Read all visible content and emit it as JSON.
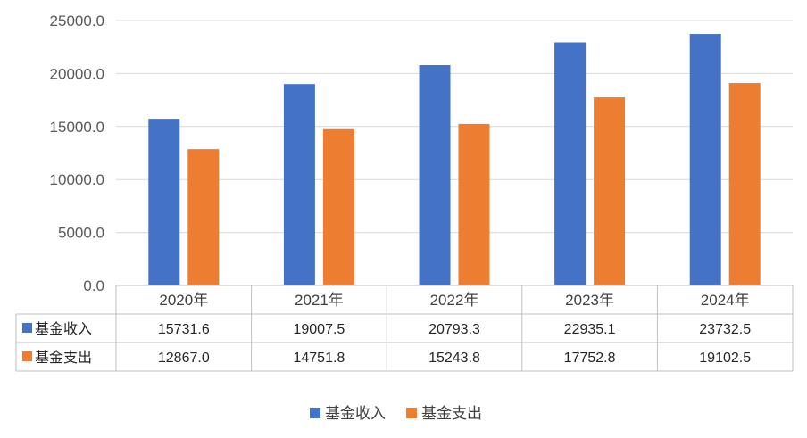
{
  "chart_data": {
    "type": "bar",
    "categories": [
      "2020年",
      "2021年",
      "2022年",
      "2023年",
      "2024年"
    ],
    "series": [
      {
        "name": "基金收入",
        "values": [
          15731.6,
          19007.5,
          20793.3,
          22935.1,
          23732.5
        ],
        "color": "#4472C4"
      },
      {
        "name": "基金支出",
        "values": [
          12867.0,
          14751.8,
          15243.8,
          17752.8,
          19102.5
        ],
        "color": "#ED7D31"
      }
    ],
    "table_values": [
      [
        "15731.6",
        "19007.5",
        "20793.3",
        "22935.1",
        "23732.5"
      ],
      [
        "12867.0",
        "14751.8",
        "15243.8",
        "17752.8",
        "19102.5"
      ]
    ],
    "yticks": [
      "0.0",
      "5000.0",
      "10000.0",
      "15000.0",
      "20000.0",
      "25000.0"
    ],
    "ylim": [
      0,
      25000
    ],
    "grid": true,
    "legend": "bottom-center",
    "data_table": true
  }
}
